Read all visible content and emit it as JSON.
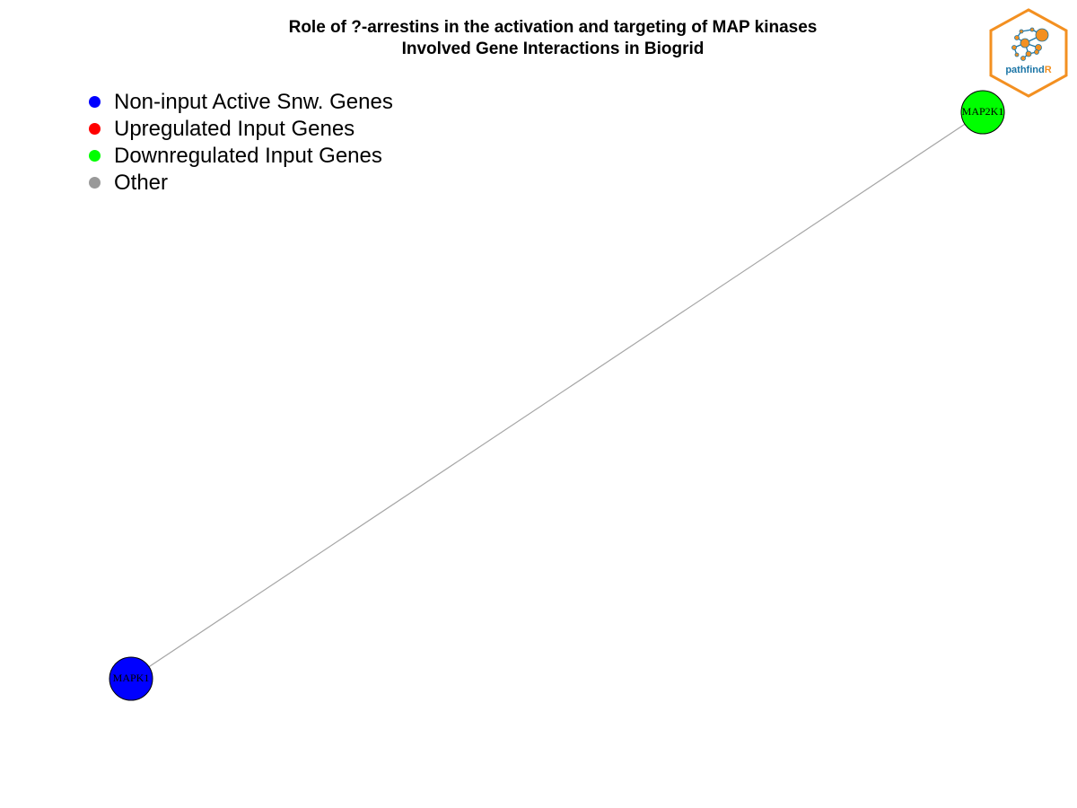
{
  "title": {
    "line1": "Role of ?-arrestins in the activation and targeting of MAP kinases",
    "line2": "Involved Gene Interactions in Biogrid"
  },
  "legend": [
    {
      "label": "Non-input Active Snw. Genes",
      "color": "#0000ff"
    },
    {
      "label": "Upregulated Input Genes",
      "color": "#ff0000"
    },
    {
      "label": "Downregulated Input Genes",
      "color": "#00ff00"
    },
    {
      "label": "Other",
      "color": "#999999"
    }
  ],
  "network": {
    "nodes": [
      {
        "id": "MAP2K1",
        "label": "MAP2K1",
        "color": "#00ff00"
      },
      {
        "id": "MAPK1",
        "label": "MAPK1",
        "color": "#0000ff"
      }
    ],
    "edges": [
      {
        "from": "MAP2K1",
        "to": "MAPK1",
        "color": "#a6a6a6"
      }
    ]
  },
  "logo": {
    "brand_main": "pathfind",
    "brand_accent": "R",
    "main_color": "#1b75a6",
    "accent_color": "#f39021"
  }
}
